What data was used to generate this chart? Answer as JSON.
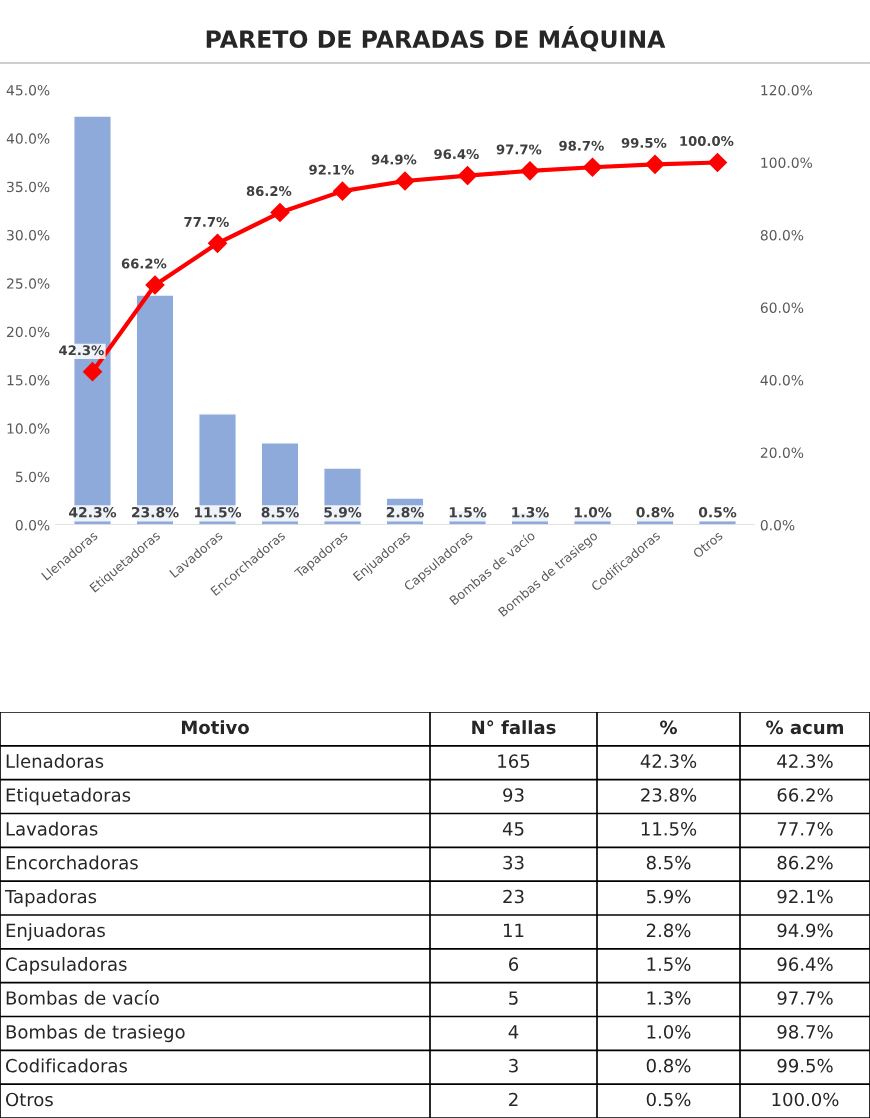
{
  "chart_data": [
    {
      "type": "bar",
      "title": "PARETO DE PARADAS DE MÁQUINA",
      "categories": [
        "Llenadoras",
        "Etiquetadoras",
        "Lavadoras",
        "Encorchadoras",
        "Tapadoras",
        "Enjuadoras",
        "Capsuladoras",
        "Bombas de vacío",
        "Bombas de trasiego",
        "Codificadoras",
        "Otros"
      ],
      "series": [
        {
          "type": "bar",
          "color": "#8eaadb",
          "values": [
            42.3,
            23.8,
            11.5,
            8.5,
            5.9,
            2.8,
            1.5,
            1.3,
            1.0,
            0.8,
            0.5
          ],
          "value_labels": [
            "42.3%",
            "23.8%",
            "11.5%",
            "8.5%",
            "5.9%",
            "2.8%",
            "1.5%",
            "1.3%",
            "1.0%",
            "0.8%",
            "0.5%"
          ]
        },
        {
          "type": "line",
          "axis": "y2",
          "color": "#ff0000",
          "marker": "diamond",
          "line_style": "solid",
          "values": [
            42.3,
            66.2,
            77.7,
            86.2,
            92.1,
            94.9,
            96.4,
            97.7,
            98.7,
            99.5,
            100.0
          ],
          "value_labels": [
            "42.3%",
            "66.2%",
            "77.7%",
            "86.2%",
            "92.1%",
            "94.9%",
            "96.4%",
            "97.7%",
            "98.7%",
            "99.5%",
            "100.0%"
          ]
        }
      ],
      "ylim": [
        0,
        45
      ],
      "yticks": [
        {
          "value": 0,
          "label": "0.0%"
        },
        {
          "value": 5,
          "label": "5.0%"
        },
        {
          "value": 10,
          "label": "10.0%"
        },
        {
          "value": 15,
          "label": "15.0%"
        },
        {
          "value": 20,
          "label": "20.0%"
        },
        {
          "value": 25,
          "label": "25.0%"
        },
        {
          "value": 30,
          "label": "30.0%"
        },
        {
          "value": 35,
          "label": "35.0%"
        },
        {
          "value": 40,
          "label": "40.0%"
        },
        {
          "value": 45,
          "label": "45.0%"
        }
      ],
      "y2lim": [
        0,
        120
      ],
      "y2ticks": [
        {
          "value": 0,
          "label": "0.0%"
        },
        {
          "value": 20,
          "label": "20.0%"
        },
        {
          "value": 40,
          "label": "40.0%"
        },
        {
          "value": 60,
          "label": "60.0%"
        },
        {
          "value": 80,
          "label": "80.0%"
        },
        {
          "value": 100,
          "label": "100.0%"
        },
        {
          "value": 120,
          "label": "120.0%"
        }
      ],
      "grid": false,
      "legend": false
    },
    {
      "type": "other",
      "annotations": [
        "Motivo"
      ],
      "categories": [
        "Llenadoras",
        "Etiquetadoras",
        "Lavadoras",
        "Encorchadoras",
        "Tapadoras",
        "Enjuadoras",
        "Capsuladoras",
        "Bombas de vacío",
        "Bombas de trasiego",
        "Codificadoras",
        "Otros"
      ],
      "series": [
        {
          "name": "N° fallas",
          "values": [
            165,
            93,
            45,
            33,
            23,
            11,
            6,
            5,
            4,
            3,
            2
          ]
        },
        {
          "name": "%",
          "values": [
            42.3,
            23.8,
            11.5,
            8.5,
            5.9,
            2.8,
            1.5,
            1.3,
            1.0,
            0.8,
            0.5
          ],
          "value_labels": [
            "42.3%",
            "23.8%",
            "11.5%",
            "8.5%",
            "5.9%",
            "2.8%",
            "1.5%",
            "1.3%",
            "1.0%",
            "0.8%",
            "0.5%"
          ]
        },
        {
          "name": "% acum",
          "values": [
            42.3,
            66.2,
            77.7,
            86.2,
            92.1,
            94.9,
            96.4,
            97.7,
            98.7,
            99.5,
            100.0
          ],
          "value_labels": [
            "42.3%",
            "66.2%",
            "77.7%",
            "86.2%",
            "92.1%",
            "94.9%",
            "96.4%",
            "97.7%",
            "98.7%",
            "99.5%",
            "100.0%"
          ]
        }
      ],
      "data_labels": true
    }
  ]
}
